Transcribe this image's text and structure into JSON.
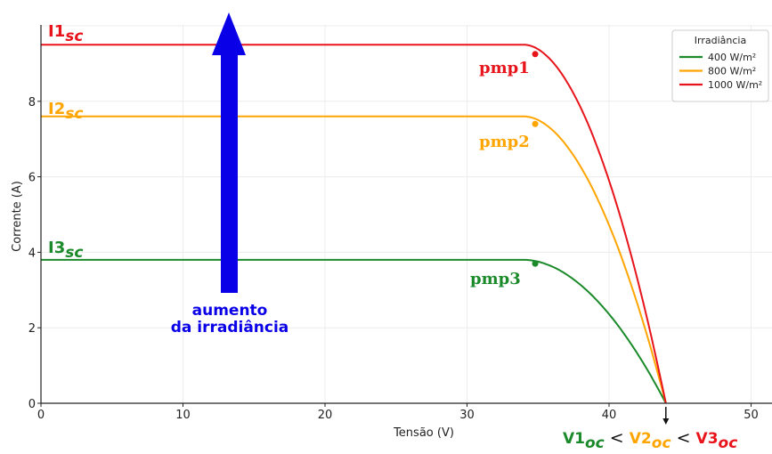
{
  "chart_data": {
    "type": "line",
    "xlabel": "Tensão (V)",
    "ylabel": "Corrente (A)",
    "xlim": [
      0,
      52
    ],
    "ylim": [
      0,
      10.1
    ],
    "xticks": [
      0,
      10,
      20,
      30,
      40,
      50
    ],
    "yticks": [
      0,
      2,
      4,
      6,
      8
    ],
    "grid": true,
    "legend": {
      "title": "Irradiância",
      "placement": "top-right"
    },
    "voc": 44,
    "series": [
      {
        "name": "400 W/m²",
        "color": "#1b8a2a",
        "isc": 3.8,
        "knee": 34,
        "mpp": [
          34.8,
          3.7
        ]
      },
      {
        "name": "800 W/m²",
        "color": "#ffa500",
        "isc": 7.6,
        "knee": 34,
        "mpp": [
          34.8,
          7.4
        ]
      },
      {
        "name": "1000 W/m²",
        "color": "#e8141b",
        "isc": 9.5,
        "knee": 34,
        "mpp": [
          34.8,
          9.25
        ]
      }
    ],
    "annotations": {
      "isc": [
        {
          "main": "I1",
          "sub": "sc",
          "color": "#e8141b"
        },
        {
          "main": "I2",
          "sub": "sc",
          "color": "#ffa500"
        },
        {
          "main": "I3",
          "sub": "sc",
          "color": "#1b8a2a"
        }
      ],
      "pmp": [
        {
          "text": "pmp1",
          "color": "#e8141b"
        },
        {
          "text": "pmp2",
          "color": "#ffa500"
        },
        {
          "text": "pmp3",
          "color": "#1b8a2a"
        }
      ],
      "arrow": {
        "line1": "aumento",
        "line2": "da irradiância",
        "color": "#0a00e8"
      },
      "voc": [
        {
          "main": "V1",
          "sub": "oc",
          "color": "#1b8a2a"
        },
        {
          "op": "<"
        },
        {
          "main": "V2",
          "sub": "oc",
          "color": "#ffa500"
        },
        {
          "op": "<"
        },
        {
          "main": "V3",
          "sub": "oc",
          "color": "#e8141b"
        }
      ]
    }
  }
}
